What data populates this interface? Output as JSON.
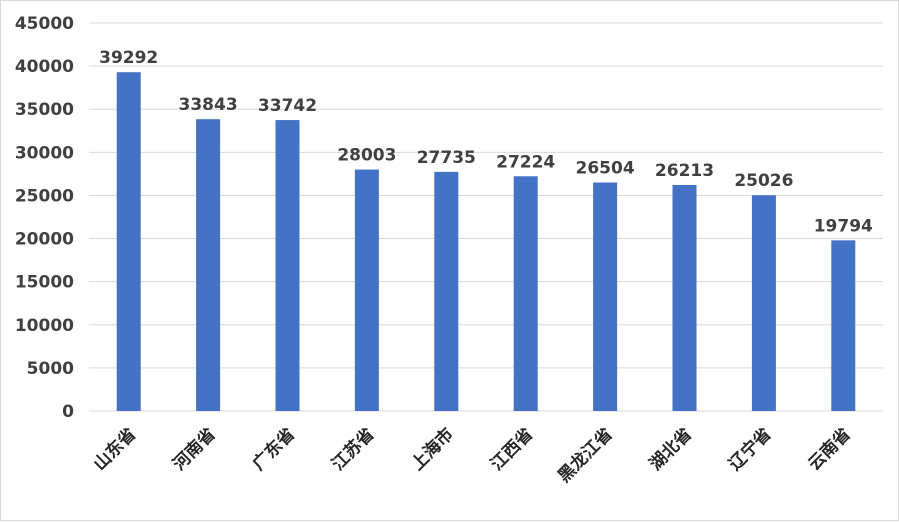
{
  "chart_data": {
    "type": "bar",
    "categories": [
      "山东省",
      "河南省",
      "广东省",
      "江苏省",
      "上海市",
      "江西省",
      "黑龙江省",
      "湖北省",
      "辽宁省",
      "云南省"
    ],
    "values": [
      39292,
      33843,
      33742,
      28003,
      27735,
      27224,
      26504,
      26213,
      25026,
      19794
    ],
    "ylim": [
      0,
      45000
    ],
    "yticks": [
      0,
      5000,
      10000,
      15000,
      20000,
      25000,
      30000,
      35000,
      40000,
      45000
    ],
    "grid": true,
    "legend": "none",
    "data_labels": true,
    "bar_color": "#4472C4",
    "grid_color": "#d9d9d9"
  }
}
